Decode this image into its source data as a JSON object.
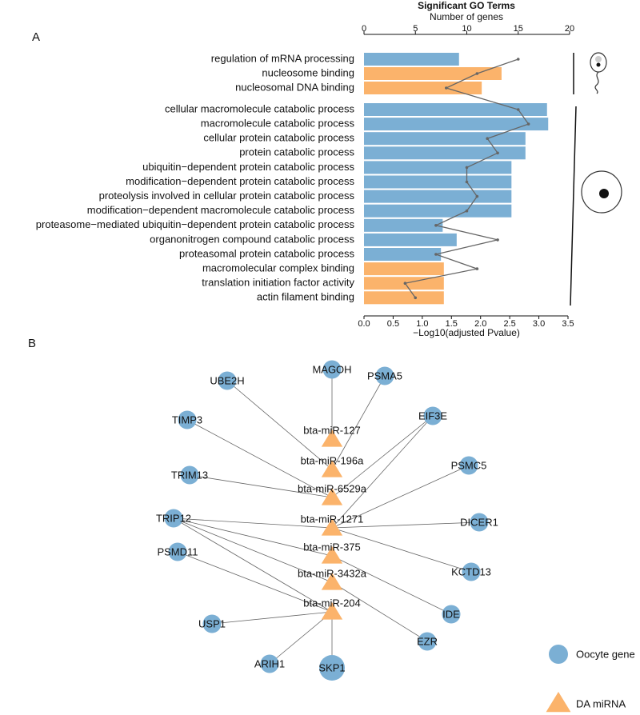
{
  "panels": {
    "a": "A",
    "b": "B"
  },
  "chart_data": {
    "type": "bar",
    "orientation": "horizontal",
    "title": "Significant GO Terms",
    "x2label": "Number of genes",
    "xlabel": "−Log10(adjusted Pvalue)",
    "categories": [
      "regulation of mRNA processing",
      "nucleosome binding",
      "nucleosomal DNA binding",
      "cellular macromolecule catabolic process",
      "macromolecule catabolic process",
      "cellular protein catabolic process",
      "protein catabolic process",
      "ubiquitin−dependent protein catabolic process",
      "modification−dependent protein catabolic process",
      "proteolysis involved in cellular protein catabolic process",
      "modification−dependent macromolecule catabolic process",
      "proteasome−mediated ubiquitin−dependent protein catabolic process",
      "organonitrogen compound catabolic process",
      "proteasomal protein catabolic process",
      "macromolecular complex binding",
      "translation initiation factor activity",
      "actin filament binding"
    ],
    "values": [
      1.63,
      2.36,
      2.02,
      3.14,
      3.16,
      2.77,
      2.77,
      2.53,
      2.53,
      2.53,
      2.53,
      1.35,
      1.59,
      1.32,
      1.37,
      1.37,
      1.37
    ],
    "colors": [
      "#7bafd4",
      "#fbb36b",
      "#fbb36b",
      "#7bafd4",
      "#7bafd4",
      "#7bafd4",
      "#7bafd4",
      "#7bafd4",
      "#7bafd4",
      "#7bafd4",
      "#7bafd4",
      "#7bafd4",
      "#7bafd4",
      "#7bafd4",
      "#fbb36b",
      "#fbb36b",
      "#fbb36b"
    ],
    "gene_counts": [
      15,
      11,
      8,
      15,
      16,
      12,
      13,
      10,
      10,
      11,
      10,
      7,
      13,
      7,
      11,
      4,
      5
    ],
    "line_color": "#666666",
    "xlim": [
      0,
      3.5
    ],
    "xticks": [
      {
        "value": 0,
        "label": "0.0"
      },
      0.5,
      {
        "value": 1,
        "label": "1.0"
      },
      1.5,
      {
        "value": 2,
        "label": "2.0"
      },
      2.5,
      {
        "value": 3,
        "label": "3.0"
      },
      3.5
    ],
    "x2lim": [
      0,
      20
    ],
    "x2ticks": [
      0,
      5,
      10,
      15,
      20
    ]
  },
  "network": {
    "nodes": [
      {
        "label": "MAGOH",
        "kind": "gene"
      },
      {
        "label": "PSMA5",
        "kind": "gene"
      },
      {
        "label": "UBE2H",
        "kind": "gene"
      },
      {
        "label": "EIF3E",
        "kind": "gene"
      },
      {
        "label": "TIMP3",
        "kind": "gene"
      },
      {
        "label": "PSMC5",
        "kind": "gene"
      },
      {
        "label": "TRIM13",
        "kind": "gene"
      },
      {
        "label": "TRIP12",
        "kind": "gene"
      },
      {
        "label": "DICER1",
        "kind": "gene"
      },
      {
        "label": "PSMD11",
        "kind": "gene"
      },
      {
        "label": "KCTD13",
        "kind": "gene"
      },
      {
        "label": "IDE",
        "kind": "gene"
      },
      {
        "label": "USP1",
        "kind": "gene"
      },
      {
        "label": "EZR",
        "kind": "gene"
      },
      {
        "label": "ARIH1",
        "kind": "gene"
      },
      {
        "label": "SKP1",
        "kind": "gene"
      },
      {
        "label": "bta-miR-127",
        "kind": "mirna"
      },
      {
        "label": "bta-miR-196a",
        "kind": "mirna"
      },
      {
        "label": "bta-miR-6529a",
        "kind": "mirna"
      },
      {
        "label": "bta-miR-1271",
        "kind": "mirna"
      },
      {
        "label": "bta-miR-375",
        "kind": "mirna"
      },
      {
        "label": "bta-miR-3432a",
        "kind": "mirna"
      },
      {
        "label": "bta-miR-204",
        "kind": "mirna"
      }
    ],
    "edges": [
      [
        0,
        16
      ],
      [
        1,
        17
      ],
      [
        2,
        17
      ],
      [
        3,
        18
      ],
      [
        3,
        19
      ],
      [
        4,
        18
      ],
      [
        5,
        19
      ],
      [
        6,
        18
      ],
      [
        7,
        19
      ],
      [
        7,
        20
      ],
      [
        7,
        21
      ],
      [
        7,
        22
      ],
      [
        8,
        19
      ],
      [
        10,
        19
      ],
      [
        11,
        20
      ],
      [
        13,
        21
      ],
      [
        9,
        22
      ],
      [
        12,
        22
      ],
      [
        14,
        22
      ],
      [
        15,
        22
      ]
    ],
    "legend": {
      "gene": "Oocyte gene",
      "mirna": "DA miRNA"
    }
  }
}
